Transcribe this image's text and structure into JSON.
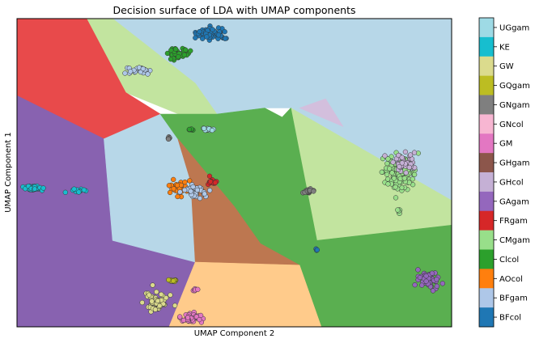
{
  "chart_data": {
    "type": "scatter",
    "title": "Decision surface of LDA with UMAP components",
    "xlabel": "UMAP Component 2",
    "ylabel": "UMAP Component 1",
    "xticks": false,
    "yticks": false,
    "grid": false,
    "colorbar": {
      "placement": "right",
      "labels": [
        "UGgam",
        "KE",
        "GW",
        "GQgam",
        "GNgam",
        "GNcol",
        "GM",
        "GHgam",
        "GHcol",
        "GAgam",
        "FRgam",
        "CMgam",
        "Clcol",
        "AOcol",
        "BFgam",
        "BFcol"
      ],
      "colors": [
        "#9edae5",
        "#17becf",
        "#dbdb8d",
        "#bcbd22",
        "#7f7f7f",
        "#f7b6d2",
        "#e377c2",
        "#8c564b",
        "#c5b0d5",
        "#9467bd",
        "#d62728",
        "#98df8a",
        "#2ca02c",
        "#ff7f0e",
        "#aec7e8",
        "#1f77b4"
      ]
    },
    "decision_regions": [
      {
        "class": "BFgam",
        "color": "#b7d7e8",
        "polygon": [
          [
            0.22,
            0.0
          ],
          [
            1.0,
            0.0
          ],
          [
            1.0,
            0.59
          ],
          [
            0.63,
            0.29
          ],
          [
            0.57,
            0.29
          ],
          [
            0.49,
            0.32
          ],
          [
            0.46,
            0.31
          ],
          [
            0.41,
            0.21
          ]
        ]
      },
      {
        "class": "CMgam",
        "color": "#c2e49f",
        "polygon": [
          [
            0.22,
            0.0
          ],
          [
            0.41,
            0.21
          ],
          [
            0.46,
            0.31
          ],
          [
            0.39,
            0.32
          ],
          [
            0.25,
            0.24
          ],
          [
            0.16,
            0.0
          ]
        ]
      },
      {
        "class": "CMgam",
        "color": "#c2e49f",
        "polygon": [
          [
            0.63,
            0.29
          ],
          [
            1.0,
            0.59
          ],
          [
            1.0,
            0.67
          ],
          [
            0.69,
            0.72
          ],
          [
            0.61,
            0.32
          ]
        ]
      },
      {
        "class": "GHcol",
        "color": "#d3bfdd",
        "polygon": [
          [
            0.65,
            0.29
          ],
          [
            0.71,
            0.26
          ],
          [
            0.75,
            0.35
          ]
        ]
      },
      {
        "class": "FRgam",
        "color": "#e84a4b",
        "polygon": [
          [
            0.0,
            0.0
          ],
          [
            0.16,
            0.0
          ],
          [
            0.25,
            0.24
          ],
          [
            0.33,
            0.31
          ],
          [
            0.2,
            0.39
          ],
          [
            0.0,
            0.25
          ]
        ]
      },
      {
        "class": "GAgam",
        "color": "#8862b0",
        "polygon": [
          [
            0.0,
            0.25
          ],
          [
            0.2,
            0.39
          ],
          [
            0.22,
            0.72
          ],
          [
            0.41,
            0.79
          ],
          [
            0.35,
            1.0
          ],
          [
            0.0,
            1.0
          ]
        ]
      },
      {
        "class": "BFgam",
        "color": "#b7d7e8",
        "polygon": [
          [
            0.2,
            0.39
          ],
          [
            0.33,
            0.31
          ],
          [
            0.37,
            0.39
          ],
          [
            0.4,
            0.53
          ],
          [
            0.41,
            0.79
          ],
          [
            0.22,
            0.72
          ]
        ]
      },
      {
        "class": "Clcol",
        "color": "#5aaf50",
        "polygon": [
          [
            0.33,
            0.31
          ],
          [
            0.46,
            0.31
          ],
          [
            0.57,
            0.29
          ],
          [
            0.61,
            0.32
          ],
          [
            0.63,
            0.29
          ],
          [
            0.69,
            0.72
          ],
          [
            1.0,
            0.67
          ],
          [
            1.0,
            1.0
          ],
          [
            0.7,
            1.0
          ],
          [
            0.65,
            0.8
          ],
          [
            0.56,
            0.73
          ],
          [
            0.5,
            0.61
          ],
          [
            0.37,
            0.39
          ]
        ]
      },
      {
        "class": "GHgam",
        "color": "#bd7750",
        "polygon": [
          [
            0.37,
            0.39
          ],
          [
            0.5,
            0.61
          ],
          [
            0.56,
            0.73
          ],
          [
            0.65,
            0.8
          ],
          [
            0.41,
            0.79
          ],
          [
            0.4,
            0.53
          ]
        ]
      },
      {
        "class": "AOcol",
        "color": "#ffcb8b",
        "polygon": [
          [
            0.41,
            0.79
          ],
          [
            0.65,
            0.8
          ],
          [
            0.7,
            1.0
          ],
          [
            0.35,
            1.0
          ]
        ]
      }
    ],
    "series": [
      {
        "name": "BFcol",
        "color": "#1f77b4",
        "center": [
          0.45,
          0.05
        ],
        "spread": [
          0.035,
          0.018
        ],
        "count": 60
      },
      {
        "name": "Clcol",
        "color": "#2ca02c",
        "center": [
          0.37,
          0.11
        ],
        "spread": [
          0.025,
          0.018
        ],
        "count": 45
      },
      {
        "name": "BFgam",
        "color": "#aec7e8",
        "center": [
          0.28,
          0.17
        ],
        "spread": [
          0.025,
          0.012
        ],
        "count": 30
      },
      {
        "name": "KE",
        "color": "#17becf",
        "center": [
          0.04,
          0.55
        ],
        "spread": [
          0.022,
          0.009
        ],
        "count": 40
      },
      {
        "name": "KE",
        "color": "#17becf",
        "center": [
          0.14,
          0.56
        ],
        "spread": [
          0.015,
          0.006
        ],
        "count": 12
      },
      {
        "name": "AOcol",
        "color": "#ff7f0e",
        "center": [
          0.37,
          0.55
        ],
        "spread": [
          0.018,
          0.022
        ],
        "count": 35
      },
      {
        "name": "BFgam",
        "color": "#aec7e8",
        "center": [
          0.41,
          0.56
        ],
        "spread": [
          0.022,
          0.018
        ],
        "count": 40
      },
      {
        "name": "FRgam",
        "color": "#d62728",
        "center": [
          0.45,
          0.53
        ],
        "spread": [
          0.012,
          0.01
        ],
        "count": 15
      },
      {
        "name": "CMgam",
        "color": "#98df8a",
        "center": [
          0.88,
          0.5
        ],
        "spread": [
          0.035,
          0.045
        ],
        "count": 130
      },
      {
        "name": "GHcol",
        "color": "#c5b0d5",
        "center": [
          0.89,
          0.46
        ],
        "spread": [
          0.03,
          0.03
        ],
        "count": 35
      },
      {
        "name": "GAgam",
        "color": "#9467bd",
        "center": [
          0.95,
          0.85
        ],
        "spread": [
          0.022,
          0.025
        ],
        "count": 55
      },
      {
        "name": "GW",
        "color": "#dbdb8d",
        "center": [
          0.32,
          0.92
        ],
        "spread": [
          0.025,
          0.025
        ],
        "count": 60
      },
      {
        "name": "GM",
        "color": "#e377c2",
        "center": [
          0.4,
          0.97
        ],
        "spread": [
          0.022,
          0.014
        ],
        "count": 45
      },
      {
        "name": "GNgam",
        "color": "#7f7f7f",
        "center": [
          0.67,
          0.56
        ],
        "spread": [
          0.013,
          0.008
        ],
        "count": 22
      },
      {
        "name": "GQgam",
        "color": "#bcbd22",
        "center": [
          0.36,
          0.85
        ],
        "spread": [
          0.012,
          0.004
        ],
        "count": 12
      },
      {
        "name": "GM",
        "color": "#e377c2",
        "center": [
          0.41,
          0.88
        ],
        "spread": [
          0.005,
          0.004
        ],
        "count": 6
      },
      {
        "name": "UGgam",
        "color": "#9edae5",
        "center": [
          0.44,
          0.36
        ],
        "spread": [
          0.014,
          0.005
        ],
        "count": 15
      },
      {
        "name": "GNgam",
        "color": "#7f7f7f",
        "center": [
          0.35,
          0.39
        ],
        "spread": [
          0.006,
          0.004
        ],
        "count": 6
      },
      {
        "name": "Clcol",
        "color": "#2ca02c",
        "center": [
          0.4,
          0.36
        ],
        "spread": [
          0.006,
          0.004
        ],
        "count": 6
      },
      {
        "name": "BFcol",
        "color": "#1f77b4",
        "center": [
          0.69,
          0.75
        ],
        "spread": [
          0.003,
          0.003
        ],
        "count": 3
      },
      {
        "name": "CMgam",
        "color": "#98df8a",
        "center": [
          0.88,
          0.62
        ],
        "spread": [
          0.004,
          0.012
        ],
        "count": 6
      }
    ]
  }
}
